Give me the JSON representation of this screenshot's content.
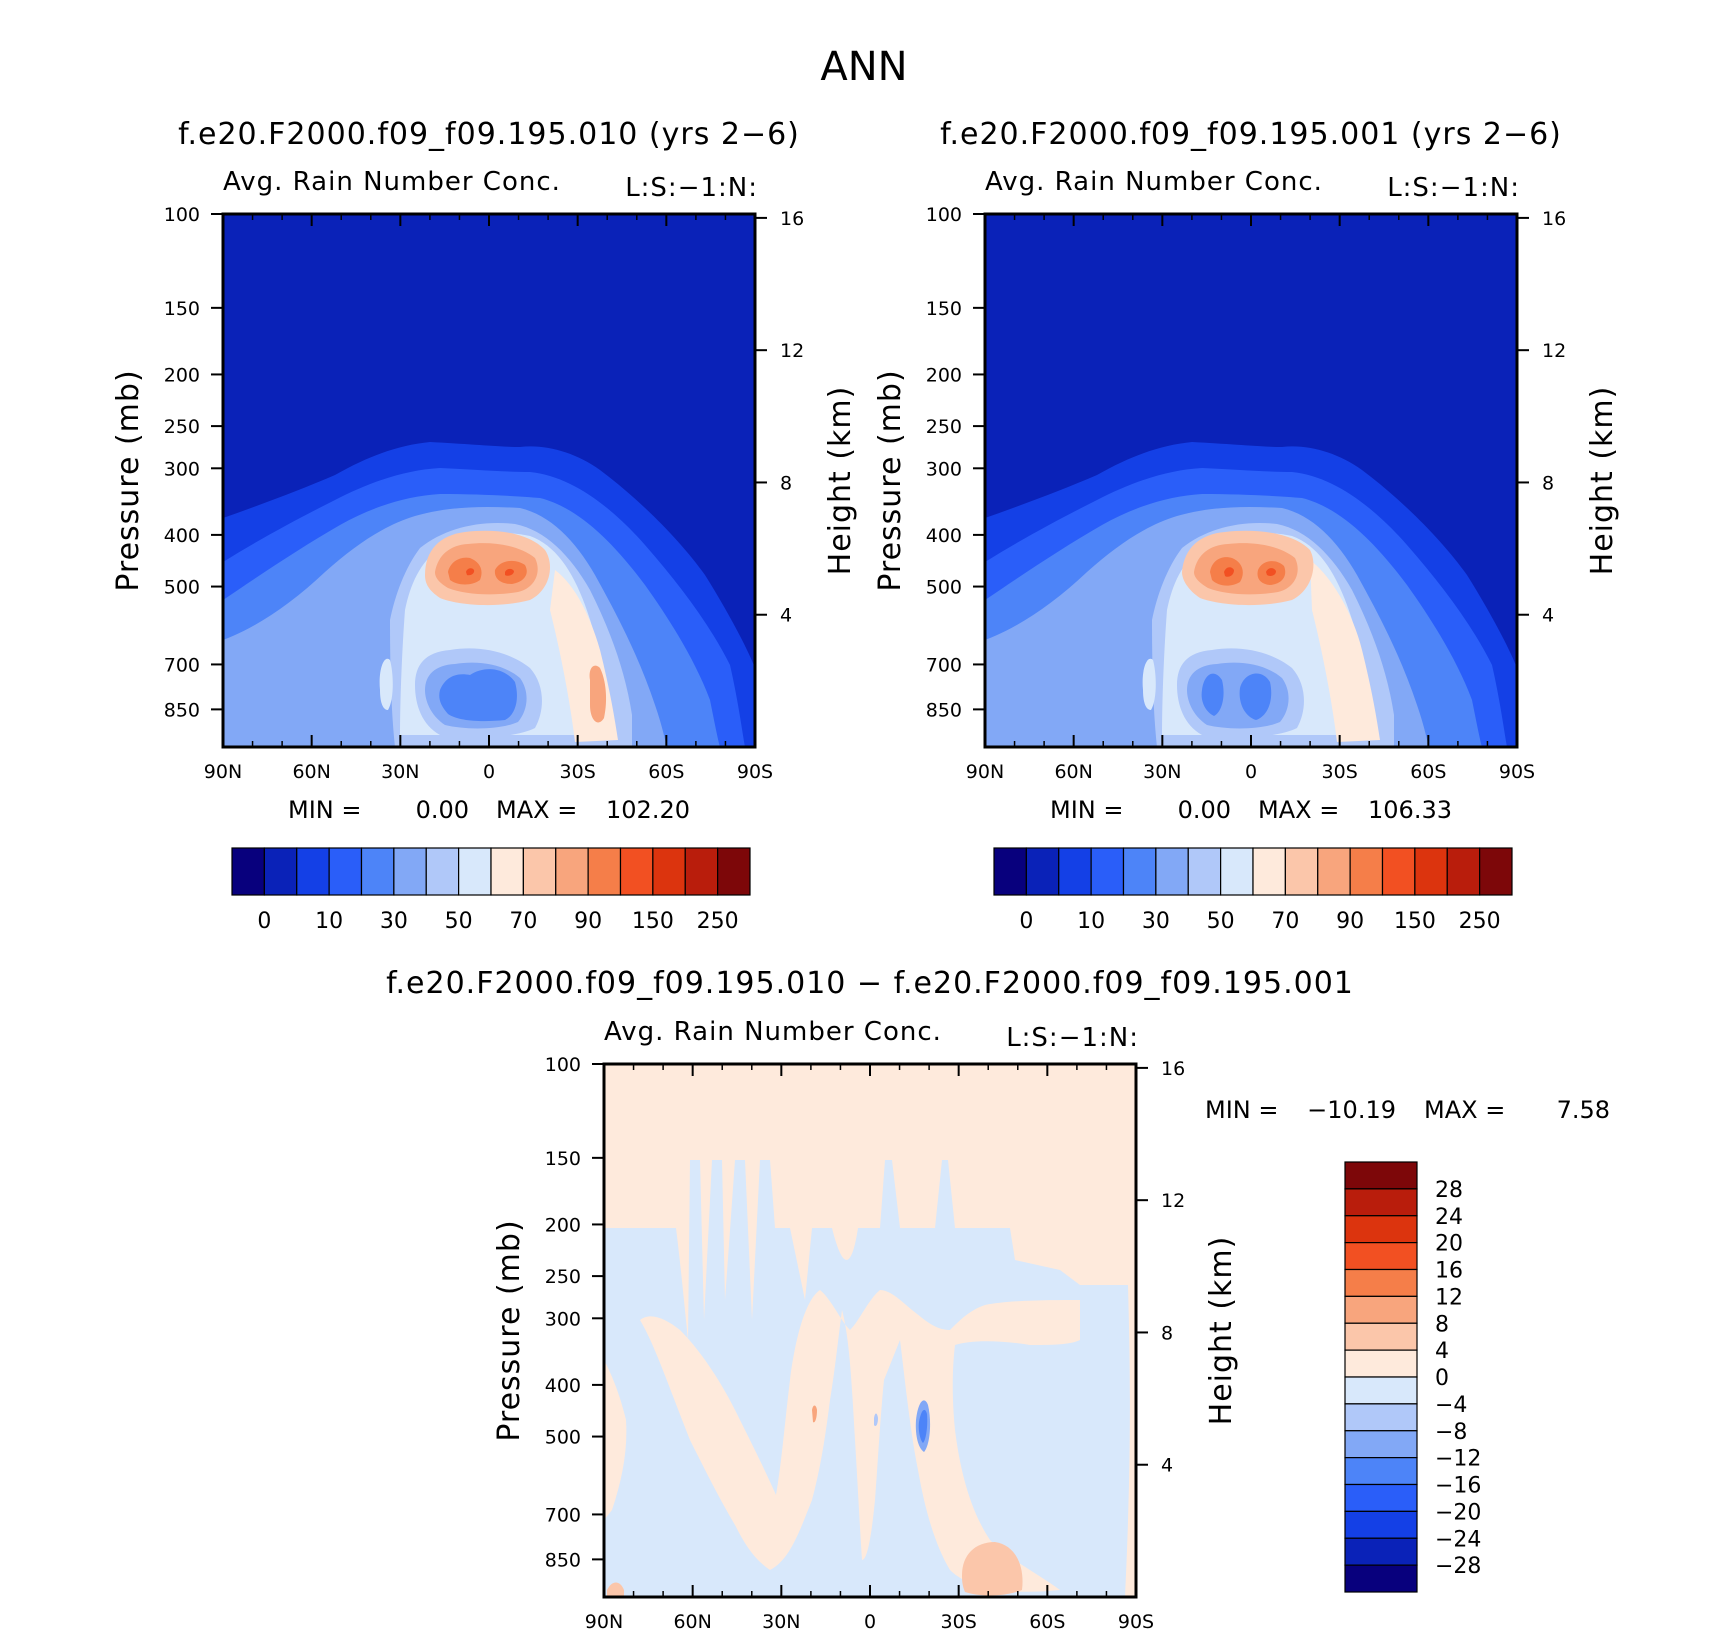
{
  "chart_data": [
    {
      "type": "heatmap",
      "id": "control",
      "case": "f.e20.F2000.f09_f09.195.010 (yrs 2−6)",
      "variable": "Avg. Rain Number Conc.",
      "level_tag": "L:S:−1:N:",
      "ylabel": "Pressure (mb)",
      "ylabel2": "Height (km)",
      "x_ticks": [
        "90N",
        "60N",
        "30N",
        "0",
        "30S",
        "60S",
        "90S"
      ],
      "y_ticks": [
        100,
        150,
        200,
        250,
        300,
        400,
        500,
        700,
        850
      ],
      "y_ticks2": [
        16,
        12,
        8,
        4
      ],
      "ylim": [
        100,
        1000
      ],
      "contour_levels": [
        0,
        5,
        10,
        20,
        30,
        40,
        50,
        60,
        70,
        80,
        90,
        100,
        150,
        200,
        250
      ],
      "colorbar_labels": [
        "0",
        "10",
        "30",
        "50",
        "70",
        "90",
        "150",
        "250"
      ],
      "colors": [
        "#08007d",
        "#0a22b8",
        "#1440e6",
        "#2a5ef9",
        "#4d84f8",
        "#82a8f6",
        "#b0c8f9",
        "#d8e8fb",
        "#feeadc",
        "#fbc6aa",
        "#f8a57d",
        "#f57e49",
        "#f25022",
        "#dc340e",
        "#b91d0c",
        "#7d0709"
      ],
      "min_label": "MIN =",
      "min": "0.00",
      "max_label": "MAX =",
      "max": "102.20"
    },
    {
      "type": "heatmap",
      "id": "test",
      "case": "f.e20.F2000.f09_f09.195.001 (yrs 2−6)",
      "variable": "Avg. Rain Number Conc.",
      "level_tag": "L:S:−1:N:",
      "ylabel": "Pressure (mb)",
      "ylabel2": "Height (km)",
      "x_ticks": [
        "90N",
        "60N",
        "30N",
        "0",
        "30S",
        "60S",
        "90S"
      ],
      "y_ticks": [
        100,
        150,
        200,
        250,
        300,
        400,
        500,
        700,
        850
      ],
      "y_ticks2": [
        16,
        12,
        8,
        4
      ],
      "ylim": [
        100,
        1000
      ],
      "contour_levels": [
        0,
        5,
        10,
        20,
        30,
        40,
        50,
        60,
        70,
        80,
        90,
        100,
        150,
        200,
        250
      ],
      "colorbar_labels": [
        "0",
        "10",
        "30",
        "50",
        "70",
        "90",
        "150",
        "250"
      ],
      "colors": [
        "#08007d",
        "#0a22b8",
        "#1440e6",
        "#2a5ef9",
        "#4d84f8",
        "#82a8f6",
        "#b0c8f9",
        "#d8e8fb",
        "#feeadc",
        "#fbc6aa",
        "#f8a57d",
        "#f57e49",
        "#f25022",
        "#dc340e",
        "#b91d0c",
        "#7d0709"
      ],
      "min_label": "MIN =",
      "min": "0.00",
      "max_label": "MAX =",
      "max": "106.33"
    },
    {
      "type": "heatmap",
      "id": "difference",
      "case": "f.e20.F2000.f09_f09.195.010 − f.e20.F2000.f09_f09.195.001",
      "variable": "Avg. Rain Number Conc.",
      "level_tag": "L:S:−1:N:",
      "ylabel": "Pressure (mb)",
      "ylabel2": "Height (km)",
      "x_ticks": [
        "90N",
        "60N",
        "30N",
        "0",
        "30S",
        "60S",
        "90S"
      ],
      "y_ticks": [
        100,
        150,
        200,
        250,
        300,
        400,
        500,
        700,
        850
      ],
      "y_ticks2": [
        16,
        12,
        8,
        4
      ],
      "ylim": [
        100,
        1000
      ],
      "contour_levels": [
        -28,
        -24,
        -20,
        -16,
        -12,
        -8,
        -4,
        0,
        4,
        8,
        12,
        16,
        20,
        24,
        28
      ],
      "colorbar_labels": [
        "28",
        "24",
        "20",
        "16",
        "12",
        "8",
        "4",
        "0",
        "−4",
        "−8",
        "−12",
        "−16",
        "−20",
        "−24",
        "−28"
      ],
      "colors": [
        "#7d0709",
        "#b91d0c",
        "#dc340e",
        "#f25022",
        "#f57e49",
        "#f8a57d",
        "#fbc6aa",
        "#feeadc",
        "#d8e8fb",
        "#b0c8f9",
        "#82a8f6",
        "#4d84f8",
        "#2a5ef9",
        "#1440e6",
        "#0a22b8",
        "#08007d"
      ],
      "min_label": "MIN =",
      "min": "−10.19",
      "max_label": "MAX =",
      "max": "7.58"
    }
  ],
  "title": "ANN"
}
